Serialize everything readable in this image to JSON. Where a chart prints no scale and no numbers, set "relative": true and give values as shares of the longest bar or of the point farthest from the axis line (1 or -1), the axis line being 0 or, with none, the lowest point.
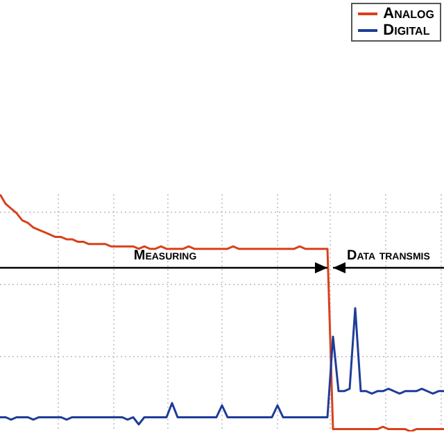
{
  "chart_data": {
    "type": "line",
    "relative": true,
    "categories": [
      null,
      null,
      null,
      null,
      null,
      null,
      null,
      null,
      null,
      null,
      null,
      null,
      null,
      null,
      null,
      null,
      null,
      null,
      null,
      null,
      null,
      null,
      null,
      null,
      null,
      null,
      null,
      null,
      null,
      null,
      null,
      null,
      null,
      null,
      null,
      null,
      null,
      null,
      null,
      null,
      null,
      null,
      null,
      null,
      null,
      null,
      null,
      null,
      null,
      null,
      null,
      null,
      null,
      null,
      null,
      null,
      null,
      null,
      null,
      null,
      null,
      null,
      null,
      null,
      null,
      null,
      null,
      null,
      null,
      null,
      null,
      null,
      null,
      null,
      null,
      null,
      null,
      null,
      null,
      null,
      null
    ],
    "series": [
      {
        "name": "Analog",
        "color": "#d9401a",
        "values": [
          1,
          0.96,
          0.94,
          0.92,
          0.89,
          0.88,
          0.86,
          0.85,
          0.84,
          0.83,
          0.82,
          0.82,
          0.81,
          0.81,
          0.8,
          0.8,
          0.79,
          0.79,
          0.79,
          0.79,
          0.78,
          0.78,
          0.78,
          0.78,
          0.78,
          0.77,
          0.78,
          0.77,
          0.77,
          0.78,
          0.77,
          0.77,
          0.77,
          0.77,
          0.78,
          0.77,
          0.77,
          0.77,
          0.77,
          0.77,
          0.77,
          0.77,
          0.78,
          0.77,
          0.77,
          0.77,
          0.77,
          0.77,
          0.77,
          0.77,
          0.77,
          0.77,
          0.77,
          0.77,
          0.78,
          0.77,
          0.77,
          0.77,
          0.77,
          0.77,
          0.01,
          0.01,
          0.01,
          0.01,
          0.01,
          0.01,
          0.01,
          0.01,
          0.01,
          0.02,
          0.01,
          0.01,
          0.01,
          0.01,
          0.0,
          0.01,
          0.01,
          0.01,
          0.01,
          0.01,
          0.01
        ]
      },
      {
        "name": "Digital",
        "color": "#1f3c99",
        "values": [
          0.06,
          0.06,
          0.05,
          0.06,
          0.06,
          0.06,
          0.05,
          0.06,
          0.06,
          0.06,
          0.06,
          0.06,
          0.05,
          0.06,
          0.06,
          0.06,
          0.06,
          0.06,
          0.06,
          0.06,
          0.06,
          0.06,
          0.06,
          0.05,
          0.06,
          0.03,
          0.06,
          0.06,
          0.06,
          0.06,
          0.06,
          0.12,
          0.06,
          0.06,
          0.06,
          0.06,
          0.06,
          0.06,
          0.06,
          0.06,
          0.11,
          0.06,
          0.06,
          0.06,
          0.06,
          0.06,
          0.06,
          0.06,
          0.06,
          0.06,
          0.11,
          0.06,
          0.06,
          0.06,
          0.06,
          0.06,
          0.06,
          0.06,
          0.06,
          0.06,
          0.4,
          0.17,
          0.17,
          0.18,
          0.52,
          0.17,
          0.17,
          0.16,
          0.17,
          0.17,
          0.18,
          0.17,
          0.16,
          0.17,
          0.17,
          0.17,
          0.18,
          0.17,
          0.16,
          0.17,
          0.17
        ]
      }
    ],
    "annotations": [
      "Measuring",
      "Data transmis"
    ],
    "grid": true,
    "legend": "top right"
  }
}
